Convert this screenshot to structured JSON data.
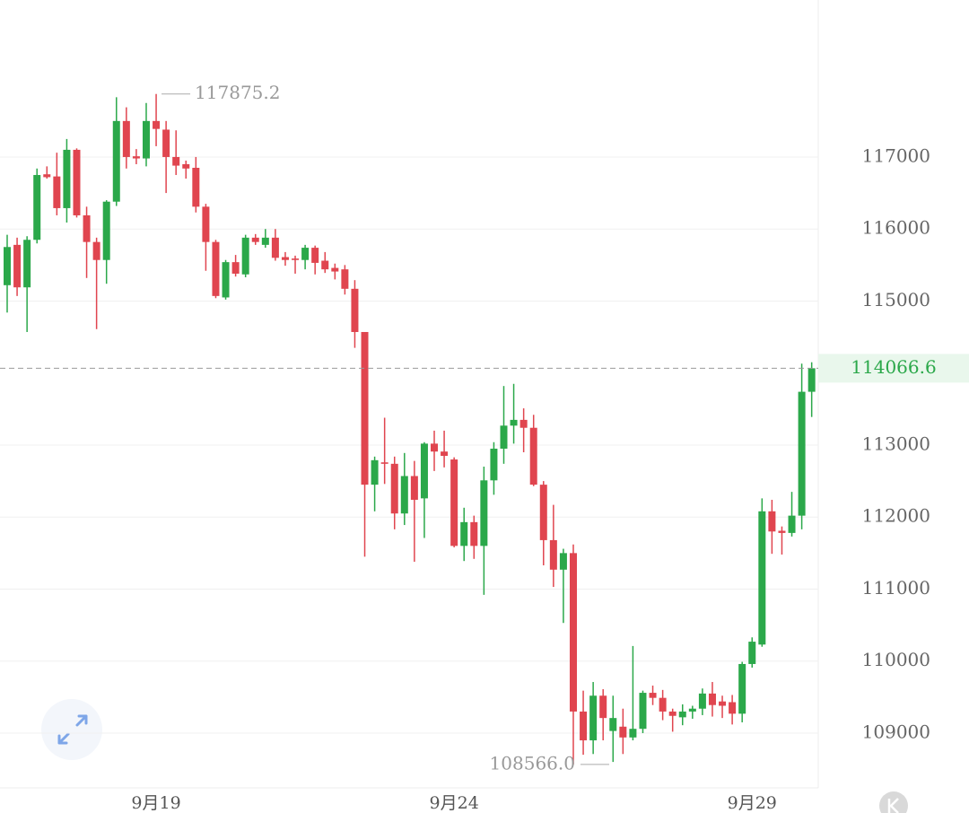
{
  "chart_data": {
    "type": "candlestick",
    "categories": [
      null,
      null,
      null,
      null,
      null,
      null,
      null,
      null,
      null,
      null,
      null,
      null,
      null,
      null,
      null,
      "9月19",
      null,
      null,
      null,
      null,
      null,
      null,
      null,
      null,
      null,
      null,
      null,
      null,
      null,
      null,
      null,
      null,
      null,
      null,
      null,
      null,
      null,
      null,
      null,
      null,
      null,
      null,
      null,
      null,
      null,
      "9月24",
      null,
      null,
      null,
      null,
      null,
      null,
      null,
      null,
      null,
      null,
      null,
      null,
      null,
      null,
      null,
      null,
      null,
      null,
      null,
      null,
      null,
      null,
      null,
      null,
      null,
      null,
      null,
      null,
      null,
      "9月29",
      null,
      null,
      null,
      null,
      null,
      null
    ],
    "open": [
      115220,
      115780,
      115190,
      115850,
      116760,
      116730,
      116290,
      117100,
      116190,
      115820,
      115570,
      116380,
      117500,
      117010,
      116980,
      117500,
      117380,
      117000,
      116900,
      116850,
      116310,
      115820,
      115050,
      115540,
      115370,
      115880,
      115780,
      115880,
      115610,
      115590,
      115570,
      115740,
      115560,
      115460,
      115440,
      115170,
      114570,
      112450,
      112760,
      112740,
      112050,
      112570,
      112260,
      113020,
      112910,
      112800,
      111600,
      111930,
      111600,
      112510,
      112950,
      113270,
      113350,
      113240,
      112450,
      111680,
      111270,
      111500,
      109300,
      108900,
      109520,
      109030,
      109090,
      108940,
      109060,
      109560,
      109490,
      109300,
      109220,
      109300,
      109340,
      109550,
      109440,
      109430,
      109270,
      109960,
      110230,
      112080,
      111810,
      111780,
      112020,
      113740
    ],
    "high": [
      115920,
      115880,
      115900,
      116840,
      116870,
      117060,
      117250,
      117120,
      116310,
      115880,
      116400,
      117830,
      117690,
      117110,
      117750,
      117875.2,
      117500,
      117370,
      116950,
      117000,
      116350,
      115850,
      115570,
      115640,
      115920,
      115930,
      116000,
      116000,
      115680,
      115630,
      115780,
      115770,
      115680,
      115520,
      115500,
      115290,
      114570,
      112840,
      113380,
      112840,
      112890,
      112780,
      113040,
      113200,
      113200,
      112830,
      112130,
      112020,
      112700,
      113040,
      113820,
      113850,
      113510,
      113420,
      112500,
      112170,
      111560,
      111620,
      109590,
      109710,
      109610,
      109520,
      109340,
      110210,
      109590,
      109660,
      109600,
      109340,
      109400,
      109380,
      109620,
      109710,
      109520,
      109530,
      109990,
      110330,
      112260,
      112240,
      111870,
      112350,
      114130,
      114150
    ],
    "low": [
      114840,
      115070,
      114570,
      115800,
      116700,
      116190,
      116090,
      116160,
      115320,
      114610,
      115240,
      116320,
      116840,
      116900,
      116870,
      117150,
      116500,
      116750,
      116700,
      116230,
      115420,
      115040,
      115020,
      115340,
      115330,
      115780,
      115740,
      115560,
      115490,
      115380,
      115440,
      115370,
      115390,
      115300,
      115090,
      114350,
      111450,
      112080,
      112460,
      111830,
      111890,
      111380,
      111710,
      112640,
      112690,
      111580,
      111390,
      111420,
      110920,
      112310,
      112740,
      113020,
      112900,
      112430,
      111330,
      111030,
      110530,
      108566,
      108700,
      108710,
      108900,
      108600,
      108710,
      108900,
      109000,
      109390,
      109180,
      109020,
      109110,
      109200,
      109250,
      109230,
      109210,
      109120,
      109150,
      109910,
      110200,
      111490,
      111480,
      111730,
      111830,
      113390
    ],
    "close": [
      115750,
      115190,
      115850,
      116750,
      116720,
      116290,
      117100,
      116190,
      115820,
      115570,
      116380,
      117500,
      117000,
      116980,
      117500,
      117390,
      117000,
      116880,
      116840,
      116310,
      115820,
      115070,
      115540,
      115380,
      115880,
      115820,
      115880,
      115600,
      115570,
      115570,
      115740,
      115530,
      115440,
      115410,
      115170,
      114570,
      112450,
      112790,
      112740,
      112050,
      112570,
      112240,
      113020,
      112910,
      112850,
      111600,
      111930,
      111600,
      112510,
      112950,
      113270,
      113350,
      113240,
      112450,
      111680,
      111270,
      111500,
      109300,
      108900,
      109520,
      109210,
      109210,
      108940,
      109060,
      109560,
      109490,
      109300,
      109240,
      109300,
      109340,
      109550,
      109390,
      109380,
      109270,
      109960,
      110270,
      112080,
      111800,
      111780,
      112020,
      113740,
      114066.6
    ],
    "up_color": "#2ba84a",
    "down_color": "#e0454f",
    "ylim": [
      108240,
      119180
    ],
    "yticks": [
      109000,
      110000,
      111000,
      112000,
      113000,
      115000,
      116000,
      117000
    ],
    "grid": true,
    "max_label": "117875.2",
    "min_label": "108566.0",
    "last_price": {
      "value": 114066.6,
      "label": "114066.6"
    }
  }
}
